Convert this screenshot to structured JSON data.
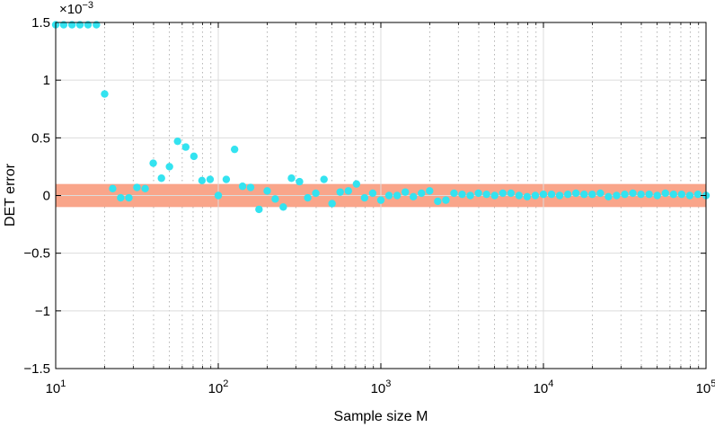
{
  "chart_data": {
    "type": "scatter",
    "title": "",
    "xlabel": "Sample size M",
    "ylabel": "DET error",
    "x_scale": "log",
    "xlim": [
      10,
      100000
    ],
    "ylim": [
      -1.5,
      1.5
    ],
    "y_multiplier_label": "×10",
    "y_multiplier_exponent": "−3",
    "x_ticks": [
      {
        "value": 10,
        "base": "10",
        "exp": "1"
      },
      {
        "value": 100,
        "base": "10",
        "exp": "2"
      },
      {
        "value": 1000,
        "base": "10",
        "exp": "3"
      },
      {
        "value": 10000,
        "base": "10",
        "exp": "4"
      },
      {
        "value": 100000,
        "base": "10",
        "exp": "5"
      }
    ],
    "y_ticks": [
      {
        "value": 1.5,
        "label": "1.5"
      },
      {
        "value": 1,
        "label": "1"
      },
      {
        "value": 0.5,
        "label": "0.5"
      },
      {
        "value": 0,
        "label": "0"
      },
      {
        "value": -0.5,
        "label": "−0.5"
      },
      {
        "value": -1,
        "label": "−1"
      },
      {
        "value": -1.5,
        "label": "−1.5"
      }
    ],
    "band": {
      "lower": -0.1,
      "upper": 0.1,
      "color": "#f9a58a"
    },
    "marker_color": "#33e3f0",
    "grid": true,
    "series": [
      {
        "name": "DET error",
        "x": [
          10,
          11.2,
          12.6,
          14.1,
          15.8,
          17.8,
          20,
          22.4,
          25.1,
          28.2,
          31.6,
          35.5,
          39.8,
          44.7,
          50.1,
          56.2,
          63.1,
          70.8,
          79.4,
          89.1,
          100,
          112,
          126,
          141,
          158,
          178,
          200,
          224,
          251,
          282,
          316,
          355,
          398,
          447,
          501,
          562,
          631,
          708,
          794,
          891,
          1000,
          1122,
          1259,
          1413,
          1585,
          1778,
          1995,
          2239,
          2512,
          2818,
          3162,
          3548,
          3981,
          4467,
          5012,
          5623,
          6310,
          7079,
          7943,
          8913,
          10000,
          11220,
          12589,
          14125,
          15849,
          17783,
          19953,
          22387,
          25119,
          28184,
          31623,
          35481,
          39811,
          44668,
          50119,
          56234,
          63096,
          70795,
          79433,
          89125,
          100000
        ],
        "y": [
          1.48,
          1.48,
          1.48,
          1.48,
          1.48,
          1.48,
          0.88,
          0.06,
          -0.02,
          -0.02,
          0.07,
          0.06,
          0.28,
          0.15,
          0.25,
          0.47,
          0.42,
          0.34,
          0.13,
          0.14,
          0.0,
          0.14,
          0.4,
          0.08,
          0.07,
          -0.12,
          0.04,
          -0.03,
          -0.1,
          0.15,
          0.12,
          -0.02,
          0.02,
          0.14,
          -0.07,
          0.03,
          0.04,
          0.1,
          -0.02,
          0.02,
          -0.04,
          0.0,
          0.0,
          0.03,
          -0.01,
          0.02,
          0.04,
          -0.05,
          -0.04,
          0.02,
          0.01,
          0.0,
          0.02,
          0.01,
          0.0,
          0.02,
          0.02,
          0.0,
          -0.01,
          0.0,
          0.01,
          0.01,
          0.0,
          0.01,
          0.02,
          0.01,
          0.01,
          0.02,
          -0.01,
          0.0,
          0.01,
          0.02,
          0.01,
          0.01,
          0.0,
          0.02,
          0.01,
          0.01,
          0.0,
          0.01,
          0.0
        ]
      }
    ]
  }
}
